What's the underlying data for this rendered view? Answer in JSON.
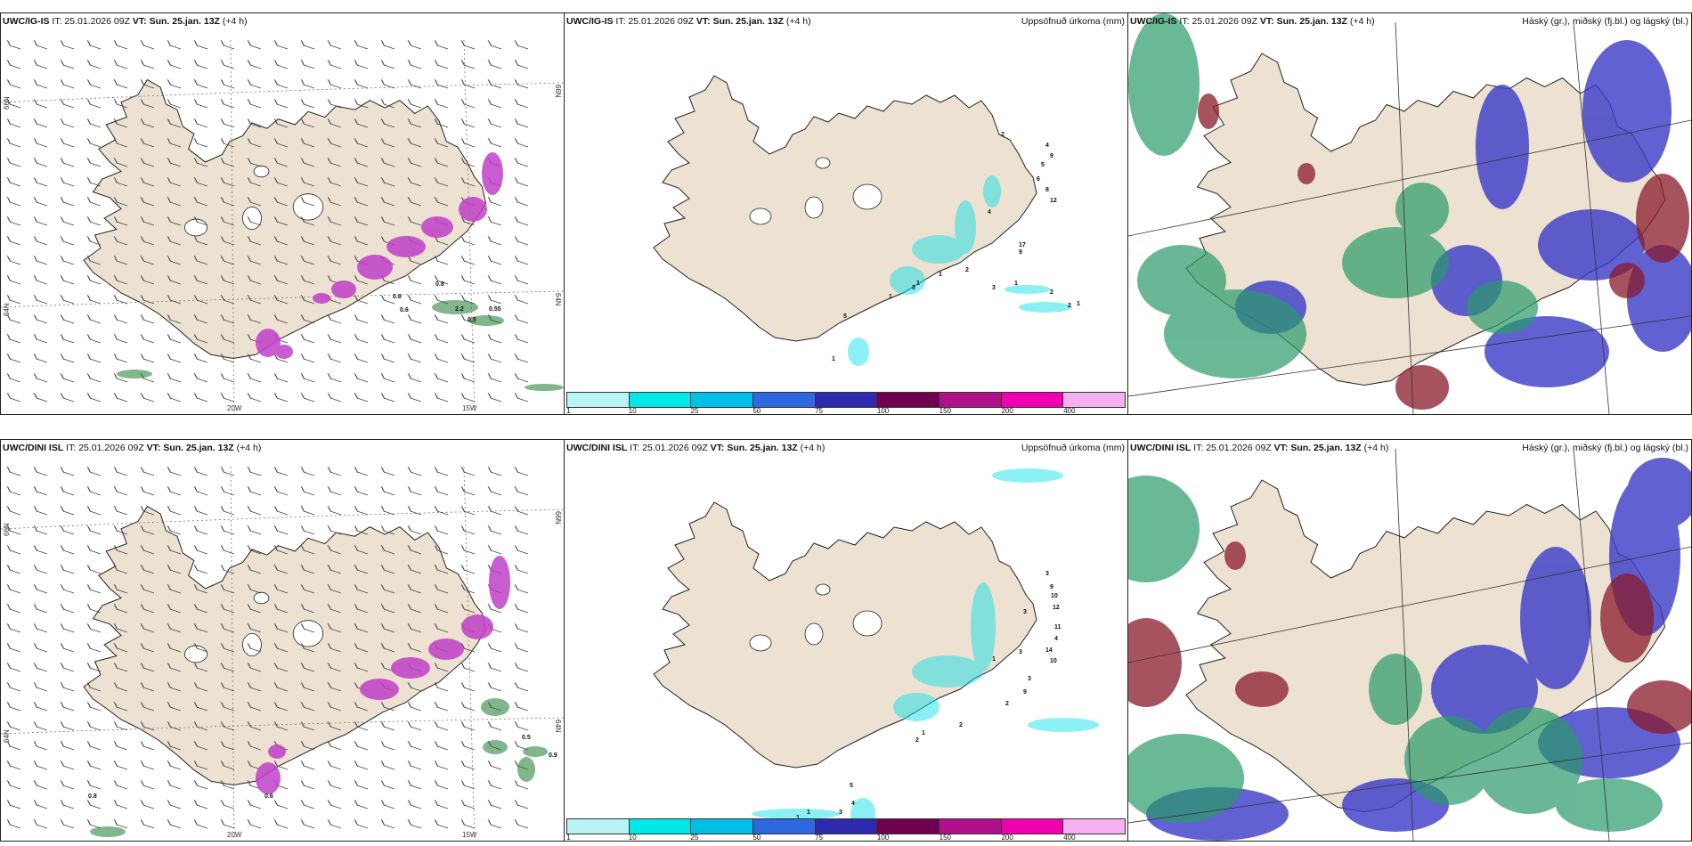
{
  "panels": [
    {
      "id": "p1",
      "model": "UWC/IG-IS",
      "it_label": "IT:",
      "it": "25.01.2026 09Z",
      "vt_label": "VT:",
      "vt": "Sun. 25.jan. 13Z",
      "lead": "(+4 h)",
      "right": "",
      "kind": "wind"
    },
    {
      "id": "p2",
      "model": "UWC/IG-IS",
      "it_label": "IT:",
      "it": "25.01.2026 09Z",
      "vt_label": "VT:",
      "vt": "Sun. 25.jan. 13Z",
      "lead": "(+4 h)",
      "right": "Uppsöfnuð úrkoma (mm)",
      "kind": "precip"
    },
    {
      "id": "p3",
      "model": "UWC/IG-IS",
      "it_label": "IT:",
      "it": "25.01.2026 09Z",
      "vt_label": "VT:",
      "vt": "Sun. 25.jan. 13Z",
      "lead": "(+4 h)",
      "right": "Háský (gr.), miðský (fj.bl.) og lágský (bl.)",
      "kind": "cloud"
    },
    {
      "id": "p4",
      "model": "UWC/DINI ISL",
      "it_label": "IT:",
      "it": "25.01.2026 09Z",
      "vt_label": "VT:",
      "vt": "Sun. 25.jan. 13Z",
      "lead": "(+4 h)",
      "right": "",
      "kind": "wind"
    },
    {
      "id": "p5",
      "model": "UWC/DINI ISL",
      "it_label": "IT:",
      "it": "25.01.2026 09Z",
      "vt_label": "VT:",
      "vt": "Sun. 25.jan. 13Z",
      "lead": "(+4 h)",
      "right": "Uppsöfnuð úrkoma (mm)",
      "kind": "precip"
    },
    {
      "id": "p6",
      "model": "UWC/DINI ISL",
      "it_label": "IT:",
      "it": "25.01.2026 09Z",
      "vt_label": "VT:",
      "vt": "Sun. 25.jan. 13Z",
      "lead": "(+4 h)",
      "right": "Háský (gr.), miðský (fj.bl.) og lágský (bl.)",
      "kind": "cloud"
    }
  ],
  "graticule": {
    "lon_20": "20W",
    "lon_15": "15W",
    "lat_66": "66N",
    "lat_64": "64N",
    "lat_63": "63N"
  },
  "colorbar": {
    "ticks": [
      "1",
      "10",
      "25",
      "50",
      "75",
      "100",
      "150",
      "200",
      "400"
    ],
    "colors": [
      "#b8f4f4",
      "#00e8e8",
      "#00c0e8",
      "#2e68e0",
      "#2d2ab0",
      "#700050",
      "#b0108a",
      "#f000b0",
      "#f4b0f0"
    ]
  },
  "colors": {
    "land": "#ede1d2",
    "coast": "#222222",
    "wind": "#444444",
    "snow": "#c040c8",
    "rain": "#1c7a2e",
    "high": "#2a9a6a",
    "mid": "#3a3ac8",
    "low": "#8a1a2a"
  },
  "precip_labels_top": [
    "2",
    "4",
    "9",
    "5",
    "6",
    "8",
    "12",
    "4",
    "17",
    "9",
    "3",
    "1",
    "2",
    "2",
    "1",
    "5",
    "1",
    "1",
    "2",
    "1",
    "1",
    "3"
  ],
  "precip_labels_bottom": [
    "3",
    "9",
    "10",
    "12",
    "3",
    "11",
    "4",
    "14",
    "10",
    "3",
    "1",
    "9",
    "3",
    "2",
    "2",
    "1",
    "2",
    "5",
    "4",
    "3",
    "1",
    "1"
  ],
  "wind_labels_top": [
    "0.8",
    "0.8",
    "2.2",
    "0.5",
    "0.6",
    "0.55"
  ],
  "wind_labels_bottom": [
    "0.5",
    "0.9",
    "0.8",
    "0.6"
  ]
}
